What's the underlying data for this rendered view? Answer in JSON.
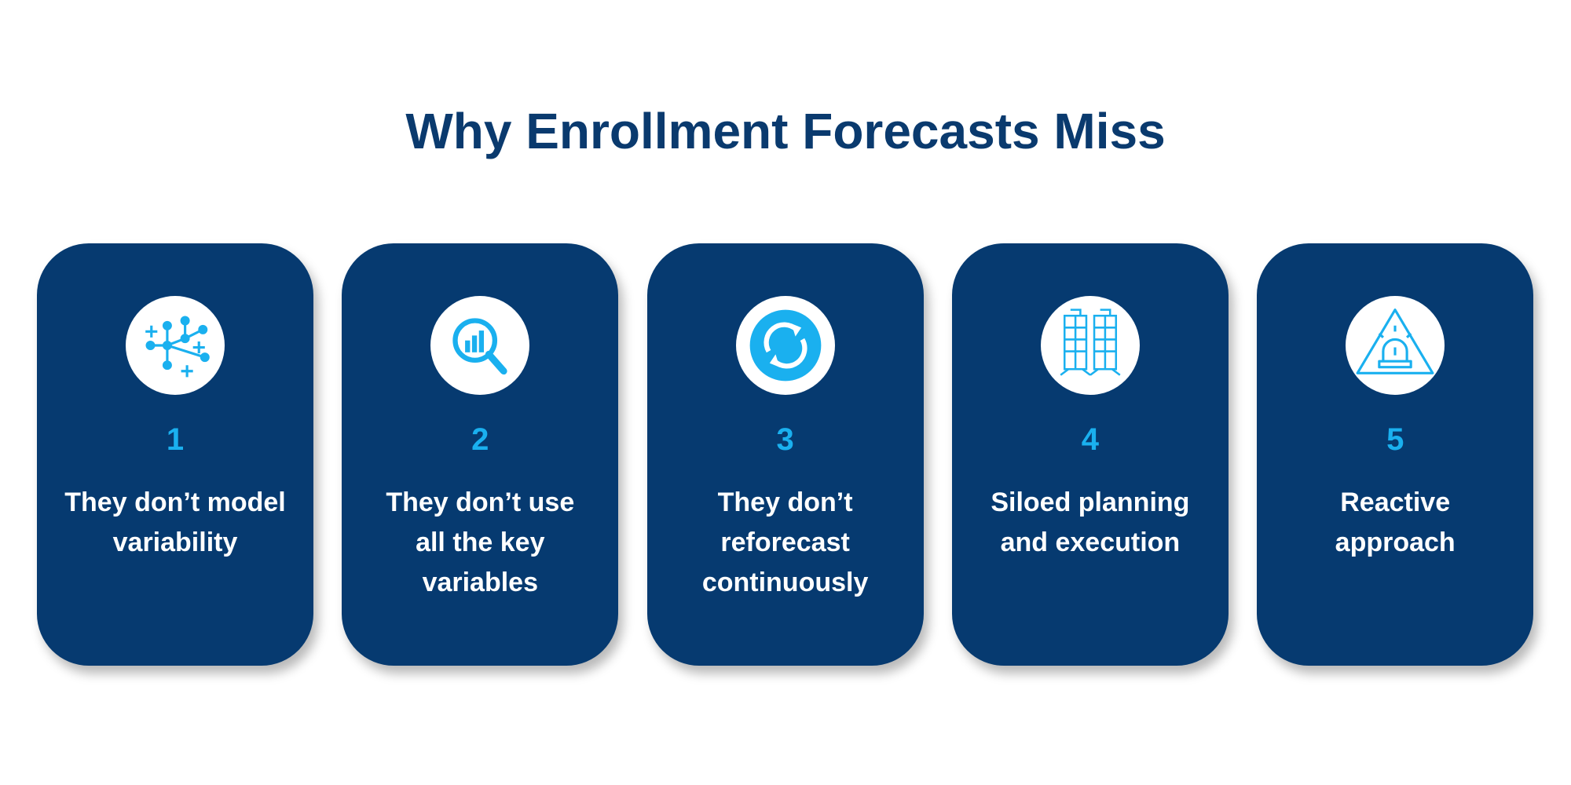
{
  "title": "Why Enrollment Forecasts Miss",
  "cards": [
    {
      "number": "1",
      "lines": [
        "They don’t model",
        "variability"
      ]
    },
    {
      "number": "2",
      "lines": [
        "They don’t use",
        "all the key",
        "variables"
      ]
    },
    {
      "number": "3",
      "lines": [
        "They don’t",
        "reforecast",
        "continuously"
      ]
    },
    {
      "number": "4",
      "lines": [
        "Siloed planning",
        "and execution"
      ]
    },
    {
      "number": "5",
      "lines": [
        "Reactive",
        "approach"
      ]
    }
  ]
}
